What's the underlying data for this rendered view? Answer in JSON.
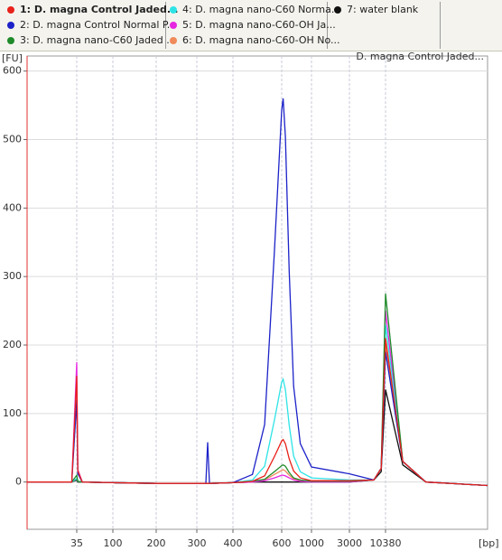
{
  "chart_data": {
    "type": "line",
    "annotation": "D. magna Control Jaded...",
    "y_label": "[FU]",
    "x_label": "[bp]",
    "x": [
      15,
      33,
      35,
      37,
      45,
      100,
      200,
      300,
      325,
      330,
      335,
      400,
      480,
      530,
      570,
      600,
      620,
      650,
      700,
      760,
      850,
      1000,
      3000,
      8000,
      9500,
      10380,
      11500,
      13000,
      17000
    ],
    "series": [
      {
        "name": "1: D. magna Control Jaded...",
        "color": "#e8211a",
        "values": [
          0,
          0,
          155,
          16,
          0,
          -1,
          -2,
          -2,
          -2,
          -2,
          -2,
          -1,
          1,
          9,
          37,
          60,
          62,
          56,
          34,
          16,
          6,
          2,
          2,
          3,
          20,
          210,
          30,
          0,
          -5
        ]
      },
      {
        "name": "2: D. magna Control Normal P...",
        "color": "#1c22c8",
        "values": [
          0,
          0,
          120,
          12,
          0,
          -1,
          -2,
          -2,
          -2,
          58,
          -2,
          -1,
          11,
          84,
          336,
          543,
          560,
          504,
          308,
          140,
          56,
          22,
          12,
          3,
          20,
          190,
          30,
          0,
          -5
        ]
      },
      {
        "name": "3: D. magna nano-C60 Jaded ...",
        "color": "#1f8a2a",
        "values": [
          0,
          0,
          10,
          1,
          0,
          -1,
          -2,
          -2,
          -2,
          -2,
          -2,
          -1,
          1,
          4,
          15,
          24,
          25,
          23,
          14,
          6,
          3,
          1,
          1,
          3,
          20,
          275,
          30,
          0,
          -5
        ]
      },
      {
        "name": "4: D. magna nano-C60 Norma...",
        "color": "#2ee3e6",
        "values": [
          0,
          0,
          5,
          1,
          0,
          -1,
          -2,
          -2,
          -2,
          -2,
          -2,
          -1,
          3,
          23,
          90,
          146,
          150,
          135,
          83,
          38,
          15,
          6,
          3,
          3,
          20,
          230,
          30,
          0,
          -5
        ]
      },
      {
        "name": "5: D. magna nano-C60-OH Ja...",
        "color": "#e626e0",
        "values": [
          0,
          0,
          175,
          18,
          0,
          -1,
          -2,
          -2,
          -2,
          -2,
          -2,
          -1,
          0,
          2,
          6,
          10,
          10,
          9,
          6,
          3,
          1,
          0,
          0,
          3,
          20,
          250,
          30,
          0,
          -5
        ]
      },
      {
        "name": "6: D. magna nano-C60-OH No...",
        "color": "#f08a5a",
        "values": [
          0,
          0,
          5,
          1,
          0,
          -1,
          -2,
          -2,
          -2,
          -2,
          -2,
          -1,
          0,
          3,
          11,
          17,
          18,
          16,
          10,
          5,
          2,
          1,
          1,
          3,
          20,
          200,
          30,
          0,
          -5
        ]
      },
      {
        "name": "7: water blank",
        "color": "#111111",
        "values": [
          0,
          0,
          3,
          0,
          0,
          -1,
          -2,
          -2,
          -2,
          -2,
          -2,
          -1,
          0,
          0,
          0,
          0,
          0,
          0,
          0,
          0,
          0,
          0,
          0,
          3,
          15,
          135,
          25,
          0,
          -5
        ]
      }
    ],
    "xlim": [
      15,
      17000
    ],
    "xticks": [
      35,
      100,
      200,
      300,
      400,
      600,
      1000,
      3000,
      10380
    ],
    "ylim": [
      -69,
      622
    ],
    "yticks": [
      0,
      100,
      200,
      300,
      400,
      500,
      600
    ],
    "grid": true
  }
}
